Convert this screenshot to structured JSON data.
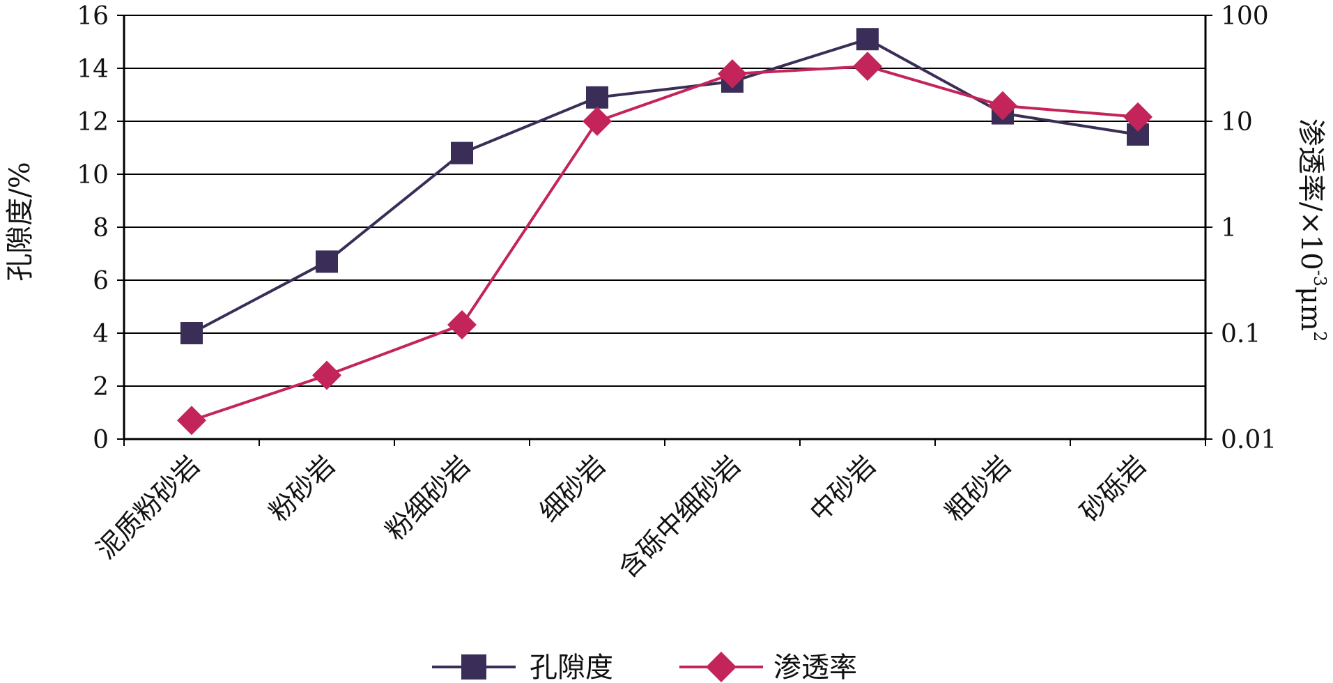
{
  "chart_data": {
    "type": "line",
    "categories": [
      "泥质粉砂岩",
      "粉砂岩",
      "粉细砂岩",
      "细砂岩",
      "含砾中细砂岩",
      "中砂岩",
      "粗砂岩",
      "砂砾岩"
    ],
    "series": [
      {
        "name": "孔隙度",
        "axis": "left",
        "color": "#3a2d57",
        "marker": "square",
        "values": [
          4.0,
          6.7,
          10.8,
          12.9,
          13.5,
          15.1,
          12.3,
          11.5
        ]
      },
      {
        "name": "渗透率",
        "axis": "right",
        "color": "#c3245a",
        "marker": "diamond",
        "values": [
          0.015,
          0.04,
          0.12,
          10,
          28,
          33,
          14,
          11
        ]
      }
    ],
    "left_axis": {
      "label": "孔隙度/%",
      "ylim": [
        0,
        16
      ],
      "ticks": [
        "0",
        "2",
        "4",
        "6",
        "8",
        "10",
        "12",
        "14",
        "16"
      ]
    },
    "right_axis": {
      "label_prefix": "渗透率/×10",
      "label_exp": "-3",
      "label_unit": "μm",
      "label_unit_exp": "2",
      "scale": "log",
      "ylim": [
        0.01,
        100
      ],
      "ticks": [
        "0.01",
        "0.1",
        "1",
        "10",
        "100"
      ]
    },
    "grid": true,
    "legend": "bottom"
  }
}
